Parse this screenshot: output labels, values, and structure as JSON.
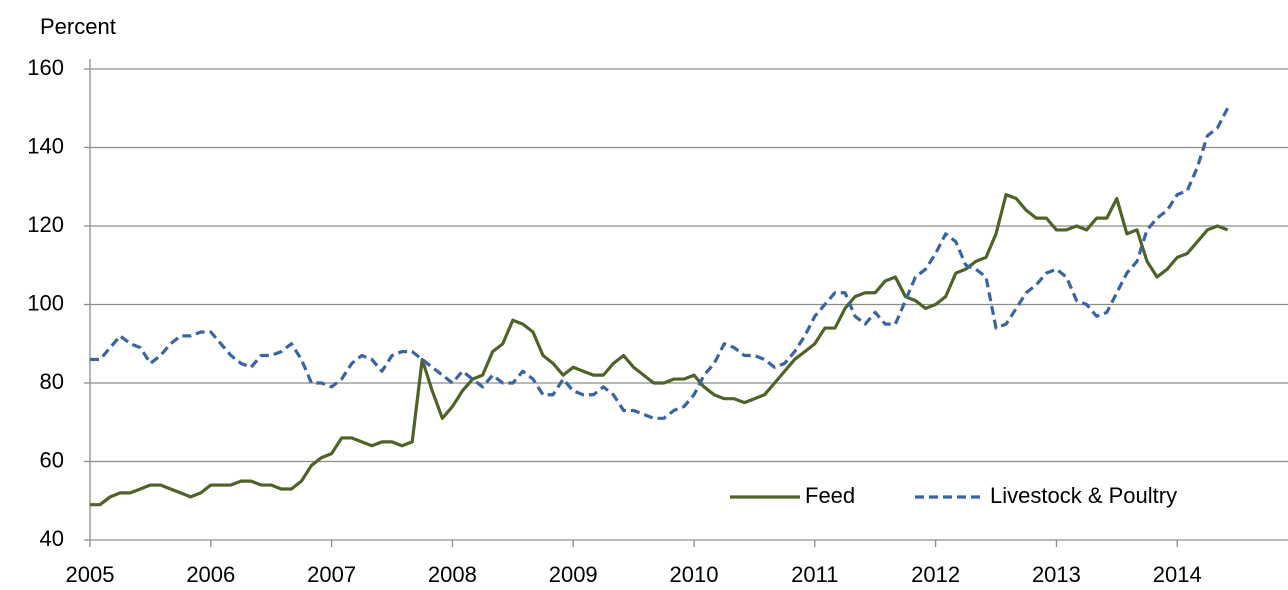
{
  "chart_data": {
    "type": "line",
    "y_label": "Percent",
    "x": [
      2005,
      2005.083,
      2005.167,
      2005.25,
      2005.333,
      2005.417,
      2005.5,
      2005.583,
      2005.667,
      2005.75,
      2005.833,
      2005.917,
      2006,
      2006.083,
      2006.167,
      2006.25,
      2006.333,
      2006.417,
      2006.5,
      2006.583,
      2006.667,
      2006.75,
      2006.833,
      2006.917,
      2007,
      2007.083,
      2007.167,
      2007.25,
      2007.333,
      2007.417,
      2007.5,
      2007.583,
      2007.667,
      2007.75,
      2007.833,
      2007.917,
      2008,
      2008.083,
      2008.167,
      2008.25,
      2008.333,
      2008.417,
      2008.5,
      2008.583,
      2008.667,
      2008.75,
      2008.833,
      2008.917,
      2009,
      2009.083,
      2009.167,
      2009.25,
      2009.333,
      2009.417,
      2009.5,
      2009.583,
      2009.667,
      2009.75,
      2009.833,
      2009.917,
      2010,
      2010.083,
      2010.167,
      2010.25,
      2010.333,
      2010.417,
      2010.5,
      2010.583,
      2010.667,
      2010.75,
      2010.833,
      2010.917,
      2011,
      2011.083,
      2011.167,
      2011.25,
      2011.333,
      2011.417,
      2011.5,
      2011.583,
      2011.667,
      2011.75,
      2011.833,
      2011.917,
      2012,
      2012.083,
      2012.167,
      2012.25,
      2012.333,
      2012.417,
      2012.5,
      2012.583,
      2012.667,
      2012.75,
      2012.833,
      2012.917,
      2013,
      2013.083,
      2013.167,
      2013.25,
      2013.333,
      2013.417,
      2013.5,
      2013.583,
      2013.667,
      2013.75,
      2013.833,
      2013.917,
      2014,
      2014.083,
      2014.167,
      2014.25,
      2014.333,
      2014.417
    ],
    "series": [
      {
        "name": "Feed",
        "color": "#4f6228",
        "dash": false,
        "values": [
          49,
          49,
          51,
          52,
          52,
          53,
          54,
          54,
          53,
          52,
          51,
          52,
          54,
          54,
          54,
          55,
          55,
          54,
          54,
          53,
          53,
          55,
          59,
          61,
          62,
          66,
          66,
          65,
          64,
          65,
          65,
          64,
          65,
          86,
          78,
          71,
          74,
          78,
          81,
          82,
          88,
          90,
          96,
          95,
          93,
          87,
          85,
          82,
          84,
          83,
          82,
          82,
          85,
          87,
          84,
          82,
          80,
          80,
          81,
          81,
          82,
          79,
          77,
          76,
          76,
          75,
          76,
          77,
          80,
          83,
          86,
          88,
          90,
          94,
          94,
          99,
          102,
          103,
          103,
          106,
          107,
          102,
          101,
          99,
          100,
          102,
          108,
          109,
          111,
          112,
          118,
          128,
          127,
          124,
          122,
          122,
          119,
          119,
          120,
          119,
          122,
          122,
          127,
          118,
          119,
          111,
          107,
          109,
          112,
          113,
          116,
          119,
          120,
          119
        ]
      },
      {
        "name": "Livestock & Poultry",
        "color": "#3a64a0",
        "dash": true,
        "values": [
          86,
          86,
          89,
          92,
          90,
          89,
          85,
          87,
          90,
          92,
          92,
          93,
          93,
          90,
          87,
          85,
          84,
          87,
          87,
          88,
          90,
          86,
          80,
          80,
          79,
          81,
          85,
          87,
          86,
          83,
          87,
          88,
          88,
          86,
          84,
          82,
          80,
          83,
          81,
          79,
          82,
          80,
          80,
          83,
          81,
          77,
          77,
          81,
          78,
          77,
          77,
          79,
          77,
          73,
          73,
          72,
          71,
          71,
          73,
          74,
          77,
          82,
          85,
          90,
          89,
          87,
          87,
          86,
          84,
          85,
          88,
          92,
          97,
          100,
          103,
          103,
          97,
          95,
          98,
          95,
          95,
          101,
          107,
          109,
          113,
          118,
          116,
          110,
          109,
          107,
          94,
          95,
          99,
          103,
          105,
          108,
          109,
          107,
          101,
          100,
          97,
          98,
          103,
          108,
          111,
          119,
          122,
          124,
          128,
          129,
          135,
          143,
          145,
          150
        ]
      }
    ],
    "xlim": [
      2005,
      2014.917
    ],
    "xticks": [
      2005,
      2006,
      2007,
      2008,
      2009,
      2010,
      2011,
      2012,
      2013,
      2014
    ],
    "ylim": [
      40,
      160
    ],
    "yticks": [
      40,
      60,
      80,
      100,
      120,
      140,
      160
    ],
    "grid": true,
    "legend": "bottom-right"
  }
}
